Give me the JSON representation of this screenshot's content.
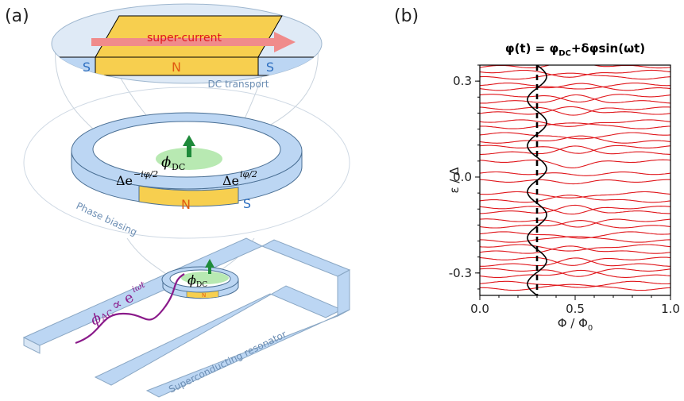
{
  "panels": {
    "a": {
      "label": "(a)",
      "zoom_top": {
        "arrow_text": "super-current",
        "left_s": "S",
        "middle_n": "N",
        "right_s": "S",
        "caption": "DC transport"
      },
      "ring": {
        "flux": "ϕ",
        "flux_sub": "DC",
        "left_gap": "Δe",
        "left_gap_exp": "−iφ/2",
        "right_gap": "Δe",
        "right_gap_exp": "iφ/2",
        "n_label": "N",
        "s_label": "S",
        "caption": "Phase biasing"
      },
      "small_ring": {
        "flux": "ϕ",
        "flux_sub": "DC",
        "n_label": "N"
      },
      "ac": {
        "symbol": "ϕ",
        "sub": "AC",
        "prop": "∝ e",
        "exp": "iωt"
      },
      "resonator_caption": "Superconducting resonator"
    },
    "b": {
      "label": "(b)"
    }
  },
  "colors": {
    "s_blue": "#bcd6f3",
    "n_yellow": "#f7cf4f",
    "arrow_red": "#f08b8b",
    "green": "#1e8a3a",
    "purple": "#8a1a8a",
    "level_red": "#e0161b"
  },
  "chart_data": {
    "type": "line",
    "title": "φ(t) = φDC+δφsin(ωt)",
    "title_parts": {
      "a": "φ(t) = φ",
      "sub1": "DC",
      "b": "+δφsin(ωt)"
    },
    "xlabel": "Φ / Φ",
    "xlabel_sub": "0",
    "ylabel": "ε / Δ",
    "xlim": [
      0.0,
      1.0
    ],
    "ylim": [
      -0.37,
      0.35
    ],
    "xticks": [
      0.0,
      0.5,
      1.0
    ],
    "xtick_labels": [
      "0.0",
      "0.5",
      "1.0"
    ],
    "yticks": [
      -0.3,
      0.0,
      0.3
    ],
    "ytick_labels": [
      "-0.3",
      "0.0",
      "0.3"
    ],
    "bias_line_x": 0.3,
    "drive": {
      "center_x": 0.3,
      "amplitude": 0.05,
      "periods": 5
    },
    "levels_positive": [
      0.012,
      0.05,
      0.075,
      0.095,
      0.11,
      0.135,
      0.155,
      0.175,
      0.2,
      0.215,
      0.235,
      0.255,
      0.275,
      0.29,
      0.31,
      0.33,
      0.345
    ],
    "levels_negative": [
      -0.012,
      -0.05,
      -0.075,
      -0.095,
      -0.11,
      -0.135,
      -0.155,
      -0.175,
      -0.2,
      -0.215,
      -0.235,
      -0.255,
      -0.275,
      -0.29,
      -0.31,
      -0.33,
      -0.35
    ],
    "grid": false,
    "legend": "none"
  }
}
